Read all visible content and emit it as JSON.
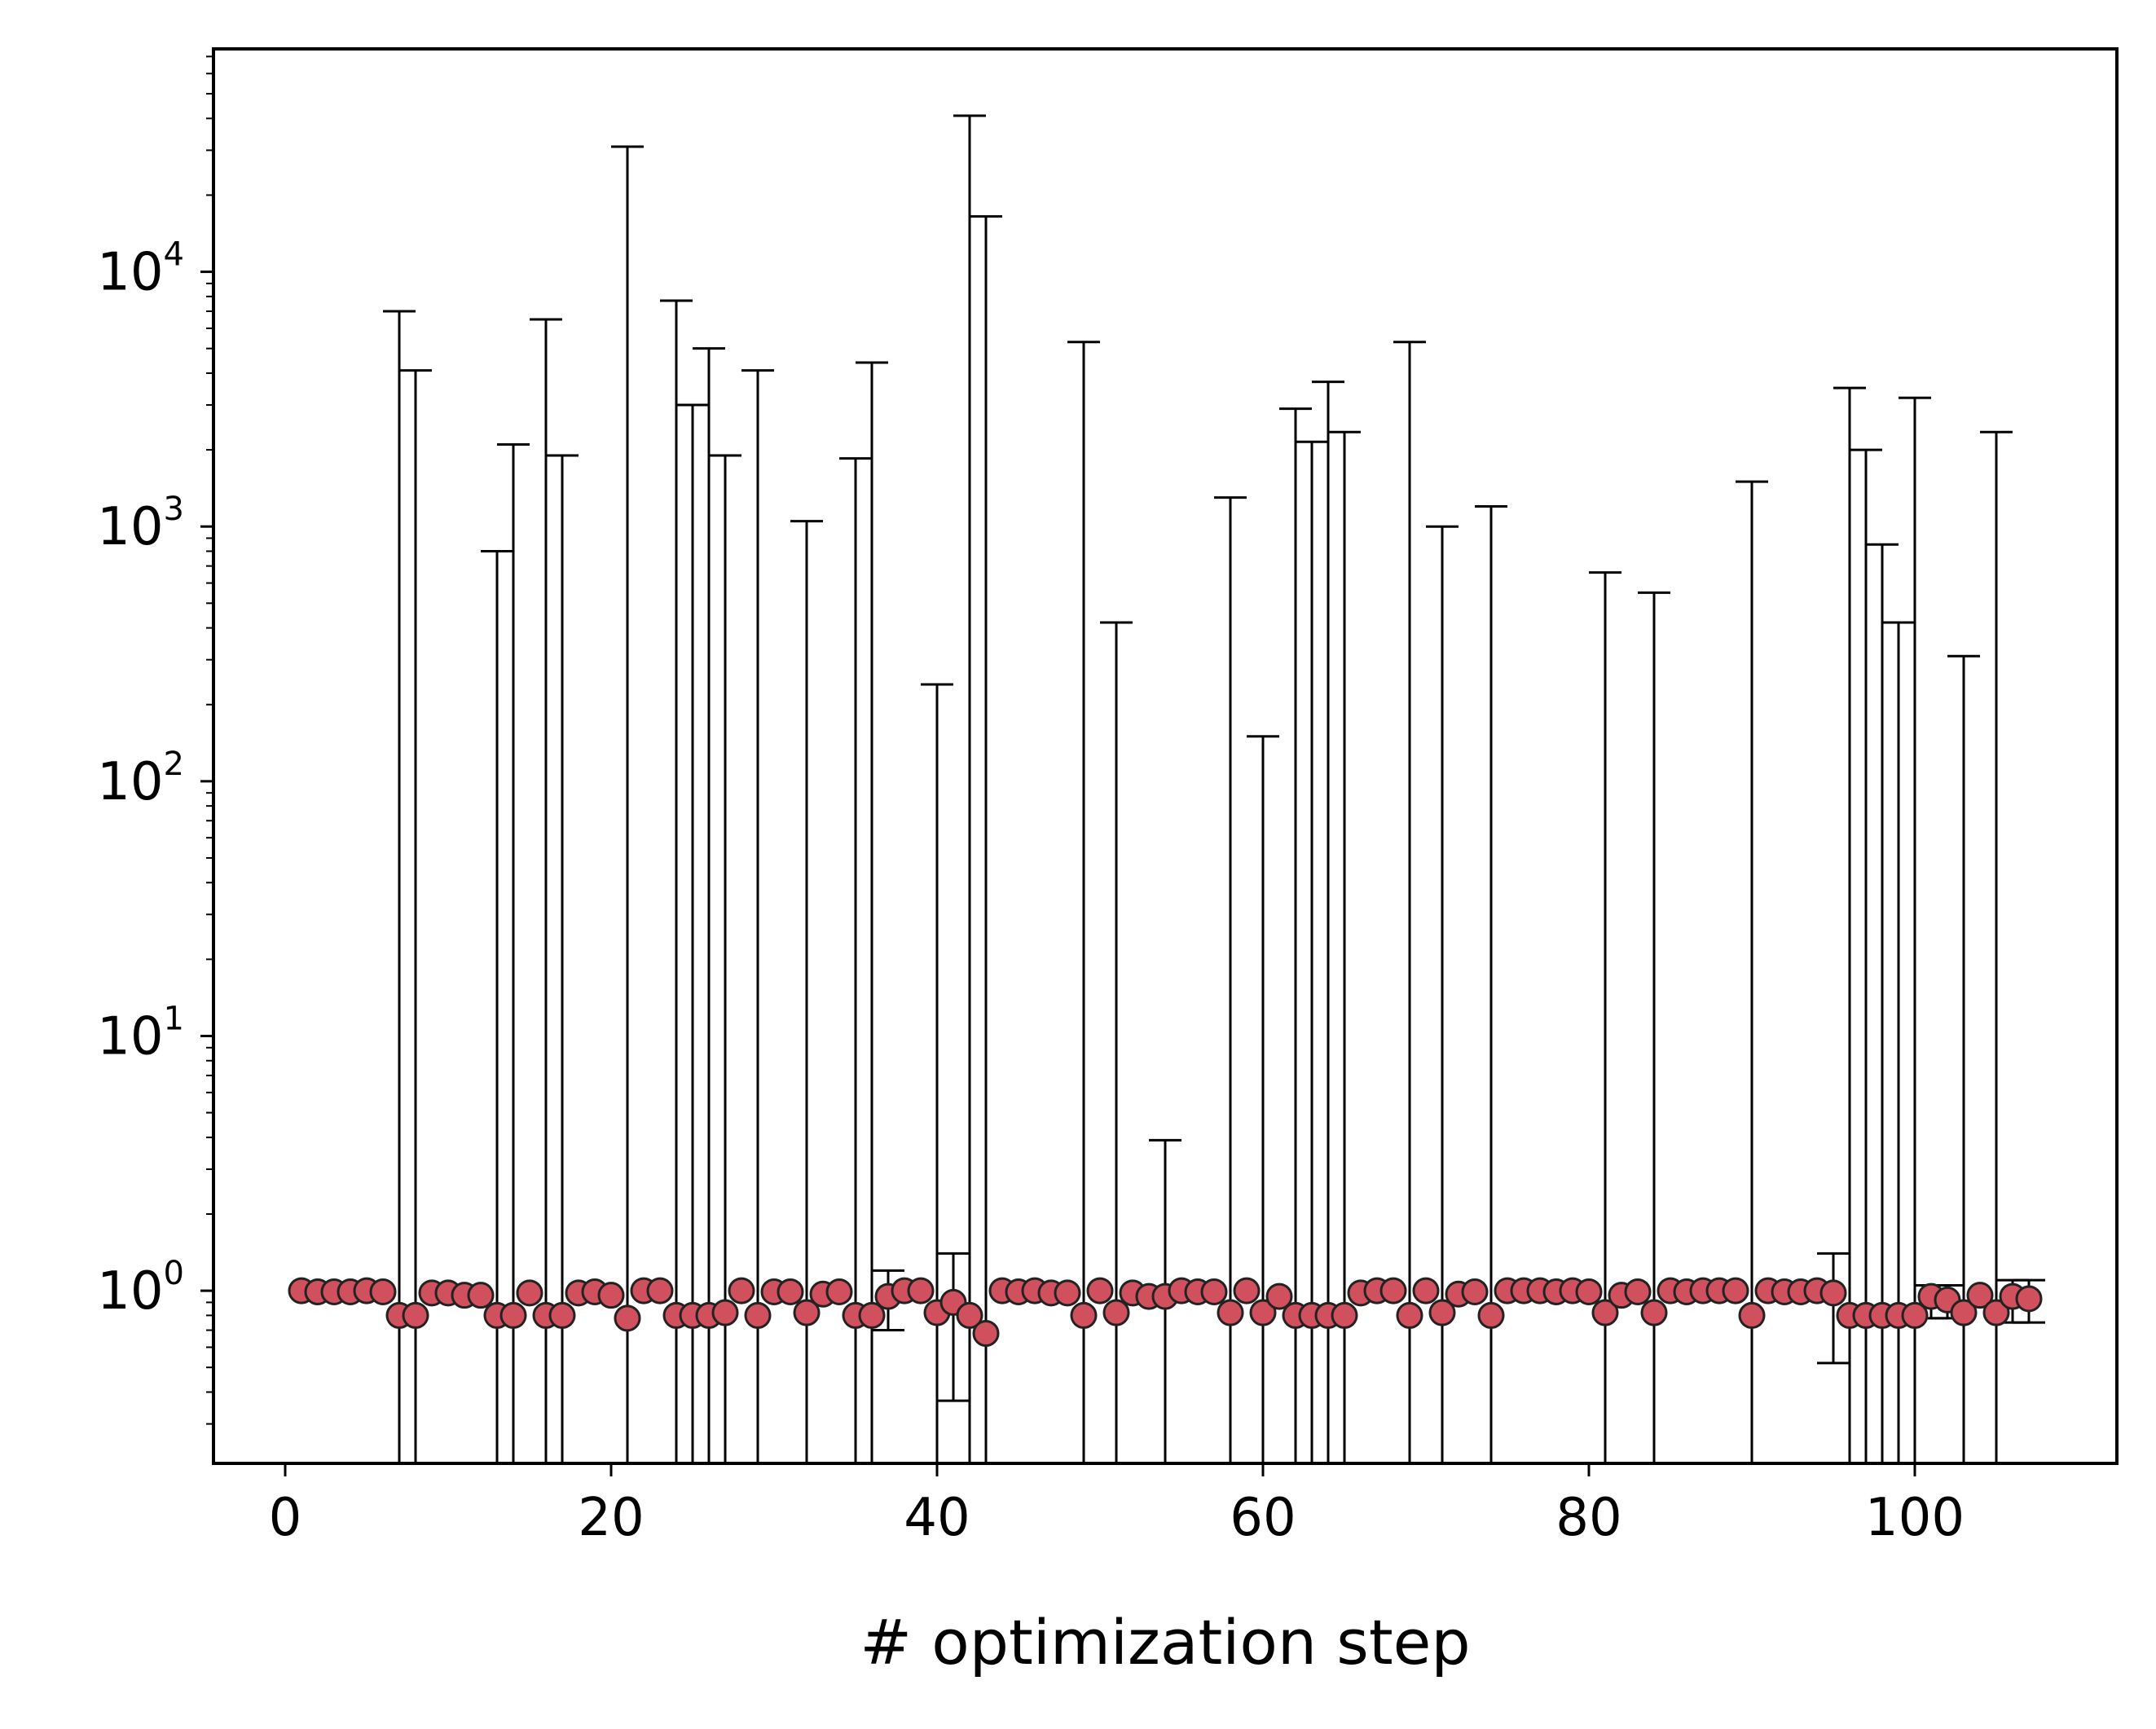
{
  "chart_data": {
    "type": "scatter",
    "xlabel": "# optimization step",
    "ylabel": "",
    "xlim": [
      -4.4,
      112.4
    ],
    "ylim": [
      0.21,
      75000
    ],
    "yscale": "log",
    "grid": false,
    "xticks": [
      0,
      20,
      40,
      60,
      80,
      100
    ],
    "xtick_labels": [
      "0",
      "20",
      "40",
      "60",
      "80",
      "100"
    ],
    "yticks": [
      1,
      10,
      100,
      1000,
      10000
    ],
    "ytick_labels": [
      {
        "base": "10",
        "exp": "0"
      },
      {
        "base": "10",
        "exp": "1"
      },
      {
        "base": "10",
        "exp": "2"
      },
      {
        "base": "10",
        "exp": "3"
      },
      {
        "base": "10",
        "exp": "4"
      }
    ],
    "colors": {
      "marker_fill": "#d1505e",
      "marker_edge": "#222222",
      "errorbar": "#000000",
      "axes": "#000000"
    },
    "points": [
      {
        "x": 1,
        "y": 1.0
      },
      {
        "x": 2,
        "y": 0.99
      },
      {
        "x": 3,
        "y": 0.99
      },
      {
        "x": 4,
        "y": 0.99
      },
      {
        "x": 5,
        "y": 1.0
      },
      {
        "x": 6,
        "y": 0.99
      },
      {
        "x": 7,
        "y": 0.8,
        "lo": 0.05,
        "hi": 7000
      },
      {
        "x": 8,
        "y": 0.8,
        "lo": 0.05,
        "hi": 4100
      },
      {
        "x": 9,
        "y": 0.98
      },
      {
        "x": 10,
        "y": 0.98
      },
      {
        "x": 11,
        "y": 0.96
      },
      {
        "x": 12,
        "y": 0.96
      },
      {
        "x": 13,
        "y": 0.8,
        "lo": 0.05,
        "hi": 800
      },
      {
        "x": 14,
        "y": 0.8,
        "lo": 0.05,
        "hi": 2100
      },
      {
        "x": 15,
        "y": 0.98
      },
      {
        "x": 16,
        "y": 0.8,
        "lo": 0.05,
        "hi": 6500
      },
      {
        "x": 17,
        "y": 0.8,
        "lo": 0.05,
        "hi": 1900
      },
      {
        "x": 18,
        "y": 0.98
      },
      {
        "x": 19,
        "y": 0.99
      },
      {
        "x": 20,
        "y": 0.96
      },
      {
        "x": 21,
        "y": 0.78,
        "lo": 0.05,
        "hi": 31000
      },
      {
        "x": 22,
        "y": 1.0
      },
      {
        "x": 23,
        "y": 1.0
      },
      {
        "x": 24,
        "y": 0.8,
        "lo": 0.05,
        "hi": 7700
      },
      {
        "x": 25,
        "y": 0.8,
        "lo": 0.05,
        "hi": 3000
      },
      {
        "x": 26,
        "y": 0.8,
        "lo": 0.05,
        "hi": 5000
      },
      {
        "x": 27,
        "y": 0.82,
        "lo": 0.05,
        "hi": 1900
      },
      {
        "x": 28,
        "y": 1.0
      },
      {
        "x": 29,
        "y": 0.8,
        "lo": 0.05,
        "hi": 4100
      },
      {
        "x": 30,
        "y": 0.99
      },
      {
        "x": 31,
        "y": 0.99
      },
      {
        "x": 32,
        "y": 0.82,
        "lo": 0.05,
        "hi": 1050
      },
      {
        "x": 33,
        "y": 0.97
      },
      {
        "x": 34,
        "y": 0.99
      },
      {
        "x": 35,
        "y": 0.8,
        "lo": 0.05,
        "hi": 1850
      },
      {
        "x": 36,
        "y": 0.8,
        "lo": 0.05,
        "hi": 4400
      },
      {
        "x": 37,
        "y": 0.95,
        "lo": 0.7,
        "hi": 1.2
      },
      {
        "x": 38,
        "y": 1.0
      },
      {
        "x": 39,
        "y": 1.0
      },
      {
        "x": 40,
        "y": 0.82,
        "lo": 0.05,
        "hi": 240
      },
      {
        "x": 41,
        "y": 0.9,
        "lo": 0.37,
        "hi": 1.4
      },
      {
        "x": 42,
        "y": 0.8,
        "lo": 0.05,
        "hi": 41000
      },
      {
        "x": 43,
        "y": 0.68,
        "lo": 0.05,
        "hi": 16500
      },
      {
        "x": 44,
        "y": 1.0
      },
      {
        "x": 45,
        "y": 0.99
      },
      {
        "x": 46,
        "y": 1.0
      },
      {
        "x": 47,
        "y": 0.98
      },
      {
        "x": 48,
        "y": 0.98
      },
      {
        "x": 49,
        "y": 0.8,
        "lo": 0.05,
        "hi": 5300
      },
      {
        "x": 50,
        "y": 1.0
      },
      {
        "x": 51,
        "y": 0.82,
        "lo": 0.05,
        "hi": 420
      },
      {
        "x": 52,
        "y": 0.98
      },
      {
        "x": 53,
        "y": 0.95
      },
      {
        "x": 54,
        "y": 0.95,
        "lo": 0.05,
        "hi": 3.9
      },
      {
        "x": 55,
        "y": 1.0
      },
      {
        "x": 56,
        "y": 0.99
      },
      {
        "x": 57,
        "y": 0.99
      },
      {
        "x": 58,
        "y": 0.82,
        "lo": 0.05,
        "hi": 1300
      },
      {
        "x": 59,
        "y": 1.0
      },
      {
        "x": 60,
        "y": 0.82,
        "lo": 0.05,
        "hi": 150
      },
      {
        "x": 61,
        "y": 0.95
      },
      {
        "x": 62,
        "y": 0.8,
        "lo": 0.05,
        "hi": 2900
      },
      {
        "x": 63,
        "y": 0.8,
        "lo": 0.05,
        "hi": 2150
      },
      {
        "x": 64,
        "y": 0.8,
        "lo": 0.05,
        "hi": 3700
      },
      {
        "x": 65,
        "y": 0.8,
        "lo": 0.05,
        "hi": 2350
      },
      {
        "x": 66,
        "y": 0.98
      },
      {
        "x": 67,
        "y": 1.0
      },
      {
        "x": 68,
        "y": 1.0
      },
      {
        "x": 69,
        "y": 0.8,
        "lo": 0.05,
        "hi": 5300
      },
      {
        "x": 70,
        "y": 1.0
      },
      {
        "x": 71,
        "y": 0.82,
        "lo": 0.05,
        "hi": 1000
      },
      {
        "x": 72,
        "y": 0.97
      },
      {
        "x": 73,
        "y": 0.99
      },
      {
        "x": 74,
        "y": 0.8,
        "lo": 0.05,
        "hi": 1200
      },
      {
        "x": 75,
        "y": 1.0
      },
      {
        "x": 76,
        "y": 1.0
      },
      {
        "x": 77,
        "y": 1.0
      },
      {
        "x": 78,
        "y": 0.99
      },
      {
        "x": 79,
        "y": 1.0
      },
      {
        "x": 80,
        "y": 0.99
      },
      {
        "x": 81,
        "y": 0.82,
        "lo": 0.05,
        "hi": 660
      },
      {
        "x": 82,
        "y": 0.96
      },
      {
        "x": 83,
        "y": 0.99
      },
      {
        "x": 84,
        "y": 0.82,
        "lo": 0.05,
        "hi": 550
      },
      {
        "x": 85,
        "y": 1.0
      },
      {
        "x": 86,
        "y": 0.99
      },
      {
        "x": 87,
        "y": 1.0
      },
      {
        "x": 88,
        "y": 1.0
      },
      {
        "x": 89,
        "y": 1.0
      },
      {
        "x": 90,
        "y": 0.8,
        "lo": 0.05,
        "hi": 1500
      },
      {
        "x": 91,
        "y": 1.0
      },
      {
        "x": 92,
        "y": 0.99
      },
      {
        "x": 93,
        "y": 0.99
      },
      {
        "x": 94,
        "y": 1.0
      },
      {
        "x": 95,
        "y": 0.98,
        "lo": 0.52,
        "hi": 1.4
      },
      {
        "x": 96,
        "y": 0.8,
        "lo": 0.05,
        "hi": 3500
      },
      {
        "x": 97,
        "y": 0.8,
        "lo": 0.05,
        "hi": 2000
      },
      {
        "x": 98,
        "y": 0.8,
        "lo": 0.05,
        "hi": 850
      },
      {
        "x": 99,
        "y": 0.8,
        "lo": 0.05,
        "hi": 420
      },
      {
        "x": 100,
        "y": 0.8,
        "lo": 0.05,
        "hi": 3200
      },
      {
        "x": 101,
        "y": 0.95,
        "lo": 0.78,
        "hi": 1.05
      },
      {
        "x": 102,
        "y": 0.92,
        "lo": 0.78,
        "hi": 1.05
      },
      {
        "x": 103,
        "y": 0.82,
        "lo": 0.05,
        "hi": 310
      },
      {
        "x": 104,
        "y": 0.96
      },
      {
        "x": 105,
        "y": 0.82,
        "lo": 0.05,
        "hi": 2350
      },
      {
        "x": 106,
        "y": 0.95,
        "lo": 0.75,
        "hi": 1.1
      },
      {
        "x": 107,
        "y": 0.93,
        "lo": 0.75,
        "hi": 1.1
      }
    ]
  }
}
